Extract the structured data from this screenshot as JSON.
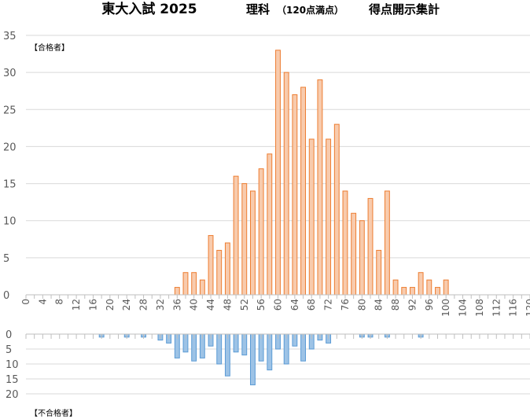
{
  "title": {
    "main": "東大入試 2025",
    "subject": "理科",
    "scale": "（120点満点）",
    "desc": "得点開示集計"
  },
  "colors": {
    "pass_fill": "#f8cbad",
    "pass_stroke": "#ed7d31",
    "fail_fill": "#9dc3e6",
    "fail_stroke": "#5b9bd5",
    "grid": "#d9d9d9",
    "axis": "#bfbfbf",
    "tick_text": "#595959"
  },
  "chart_data": [
    {
      "type": "bar",
      "series_label": "【合格者】",
      "bin_width": 2,
      "x": [
        36,
        38,
        40,
        42,
        44,
        46,
        48,
        50,
        52,
        54,
        56,
        58,
        60,
        62,
        64,
        66,
        68,
        70,
        72,
        74,
        76,
        78,
        80,
        82,
        84,
        86,
        88,
        90,
        92,
        94,
        96,
        98,
        100
      ],
      "values": [
        1,
        3,
        3,
        2,
        8,
        6,
        7,
        16,
        15,
        14,
        17,
        19,
        33,
        30,
        27,
        28,
        21,
        29,
        21,
        23,
        14,
        11,
        10,
        13,
        6,
        14,
        2,
        1,
        1,
        3,
        2,
        1,
        2
      ],
      "xlim": [
        0,
        120
      ],
      "ylim": [
        0,
        35
      ],
      "yticks": [
        0,
        5,
        10,
        15,
        20,
        25,
        30,
        35
      ],
      "xticks": [
        0,
        4,
        8,
        12,
        16,
        20,
        24,
        28,
        32,
        36,
        40,
        44,
        48,
        52,
        56,
        60,
        64,
        68,
        72,
        76,
        80,
        84,
        88,
        92,
        96,
        100,
        104,
        108,
        112,
        116,
        120
      ],
      "grid": true
    },
    {
      "type": "bar",
      "series_label": "【不合格者】",
      "bin_width": 2,
      "x": [
        18,
        24,
        28,
        32,
        34,
        36,
        38,
        40,
        42,
        44,
        46,
        48,
        50,
        52,
        54,
        56,
        58,
        60,
        62,
        64,
        66,
        68,
        70,
        72,
        80,
        82,
        86,
        94
      ],
      "values": [
        1,
        1,
        1,
        2,
        3,
        8,
        6,
        9,
        8,
        4,
        10,
        14,
        6,
        7,
        17,
        9,
        12,
        5,
        10,
        4,
        9,
        5,
        2,
        3,
        1,
        1,
        1,
        1
      ],
      "xlim": [
        0,
        120
      ],
      "ylim": [
        0,
        20
      ],
      "yticks": [
        0,
        5,
        10,
        15,
        20
      ],
      "inverted": true,
      "grid": true
    }
  ]
}
